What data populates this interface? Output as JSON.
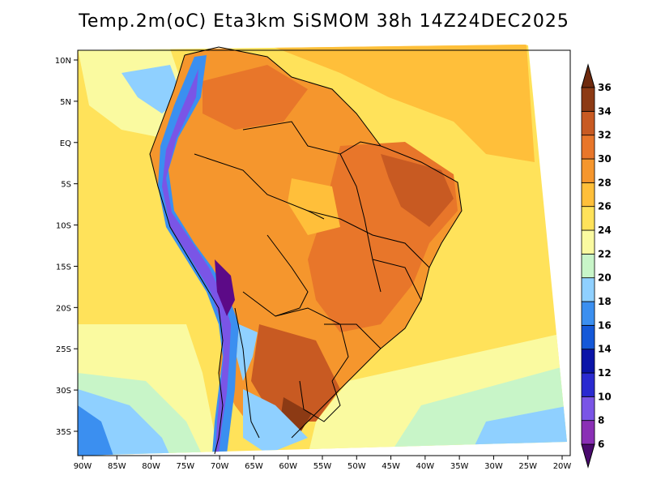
{
  "title": "Temp.2m(oC) Eta3km SiSMOM 38h 14Z24DEC2025",
  "map": {
    "lat_ticks": [
      {
        "lat": 10,
        "label": "10N"
      },
      {
        "lat": 5,
        "label": "5N"
      },
      {
        "lat": 0,
        "label": "EQ"
      },
      {
        "lat": -5,
        "label": "5S"
      },
      {
        "lat": -10,
        "label": "10S"
      },
      {
        "lat": -15,
        "label": "15S"
      },
      {
        "lat": -20,
        "label": "20S"
      },
      {
        "lat": -25,
        "label": "25S"
      },
      {
        "lat": -30,
        "label": "30S"
      },
      {
        "lat": -35,
        "label": "35S"
      }
    ],
    "lon_ticks": [
      {
        "lon": -90,
        "label": "90W"
      },
      {
        "lon": -85,
        "label": "85W"
      },
      {
        "lon": -80,
        "label": "80W"
      },
      {
        "lon": -75,
        "label": "75W"
      },
      {
        "lon": -70,
        "label": "70W"
      },
      {
        "lon": -65,
        "label": "65W"
      },
      {
        "lon": -60,
        "label": "60W"
      },
      {
        "lon": -55,
        "label": "55W"
      },
      {
        "lon": -50,
        "label": "50W"
      },
      {
        "lon": -45,
        "label": "45W"
      },
      {
        "lon": -40,
        "label": "40W"
      },
      {
        "lon": -35,
        "label": "35W"
      },
      {
        "lon": -30,
        "label": "30W"
      },
      {
        "lon": -25,
        "label": "25W"
      },
      {
        "lon": -20,
        "label": "20W"
      }
    ]
  },
  "colorbar": {
    "levels": [
      {
        "value": "6",
        "color": "#5c0a87"
      },
      {
        "value": "8",
        "color": "#8a2fb5"
      },
      {
        "value": "10",
        "color": "#7a55e6"
      },
      {
        "value": "12",
        "color": "#2a2ad0"
      },
      {
        "value": "14",
        "color": "#0a14a8"
      },
      {
        "value": "16",
        "color": "#1458d8"
      },
      {
        "value": "18",
        "color": "#3b8ff0"
      },
      {
        "value": "20",
        "color": "#8fd0ff"
      },
      {
        "value": "22",
        "color": "#c8f5c8"
      },
      {
        "value": "24",
        "color": "#fafaa0"
      },
      {
        "value": "26",
        "color": "#ffe25a"
      },
      {
        "value": "28",
        "color": "#ffbf3a"
      },
      {
        "value": "30",
        "color": "#f5962d"
      },
      {
        "value": "32",
        "color": "#e8762a"
      },
      {
        "value": "34",
        "color": "#c85a22"
      },
      {
        "value": "36",
        "color": "#8c3a14"
      }
    ],
    "min_arrow_color": "#4a0a6e",
    "max_arrow_color": "#6e2a0e"
  }
}
